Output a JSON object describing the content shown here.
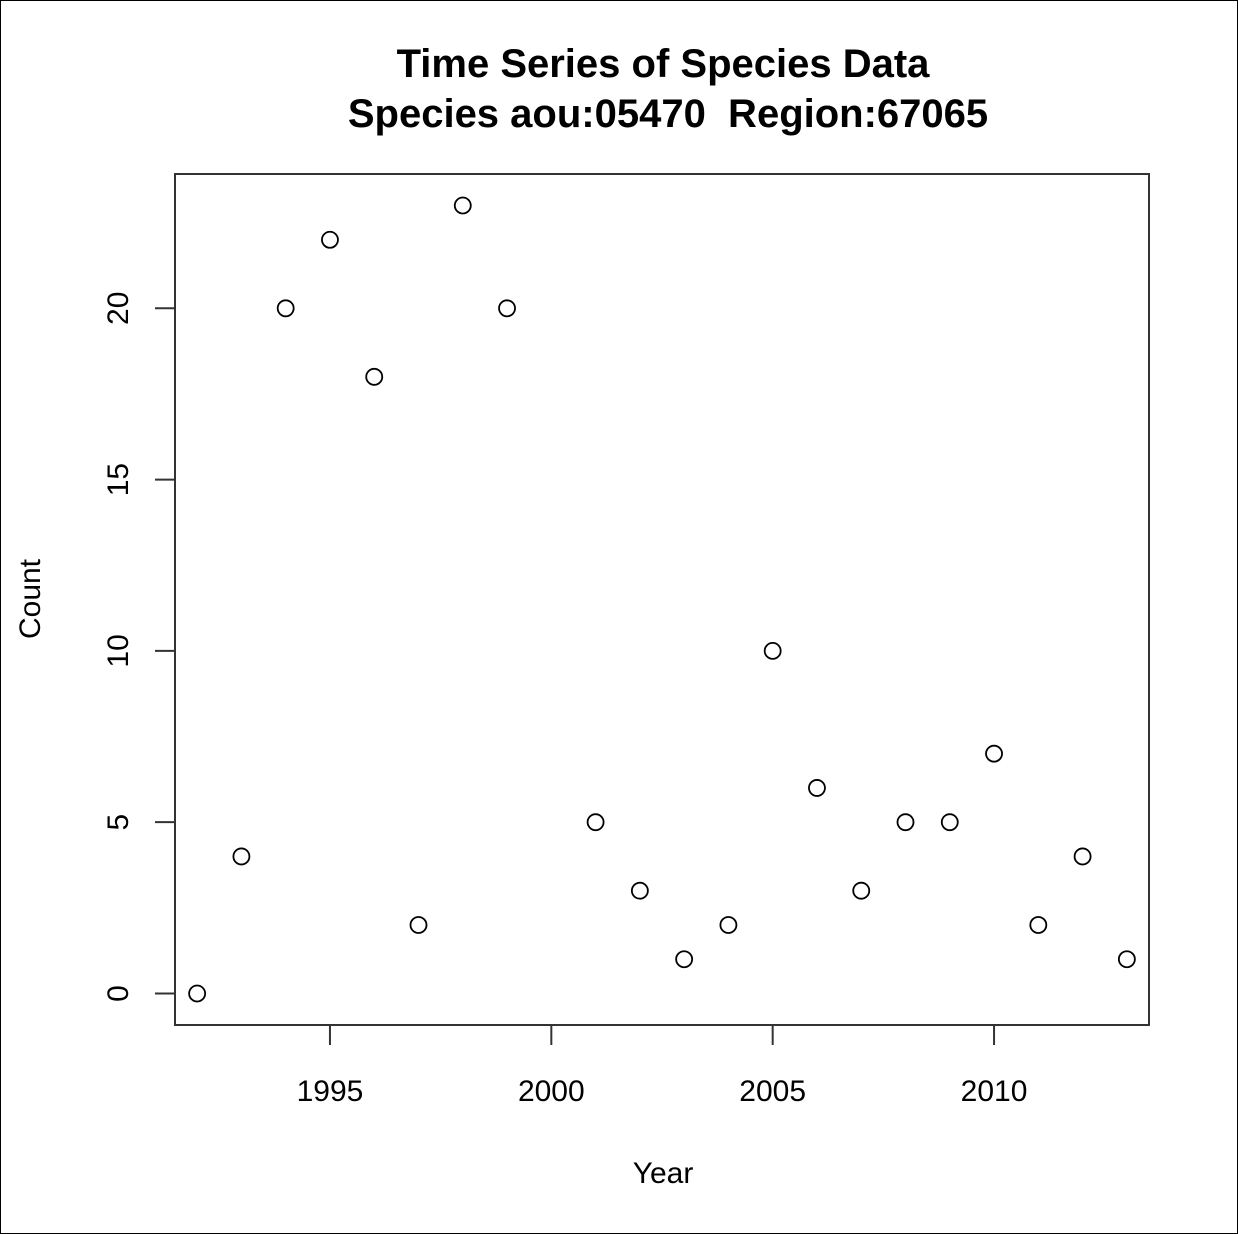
{
  "chart_data": {
    "type": "scatter",
    "title": "Time Series of Species Data",
    "subtitle": "Species aou:05470  Region:67065",
    "xlabel": "Year",
    "ylabel": "Count",
    "xlim": [
      1991.5,
      2013.5
    ],
    "ylim": [
      -0.92,
      23.92
    ],
    "xticks": [
      1995,
      2000,
      2005,
      2010
    ],
    "yticks": [
      0,
      5,
      10,
      15,
      20
    ],
    "grid": false,
    "legend": "none",
    "marker": "open-circle",
    "series": [
      {
        "x": [
          1992,
          1993,
          1994,
          1995,
          1996,
          1997,
          1998,
          1999,
          2001,
          2002,
          2003,
          2004,
          2005,
          2006,
          2007,
          2008,
          2009,
          2010,
          2011,
          2012,
          2013
        ],
        "y": [
          0,
          4,
          20,
          22,
          18,
          2,
          23,
          20,
          5,
          3,
          1,
          2,
          10,
          6,
          3,
          5,
          5,
          7,
          2,
          4,
          1
        ]
      }
    ]
  }
}
